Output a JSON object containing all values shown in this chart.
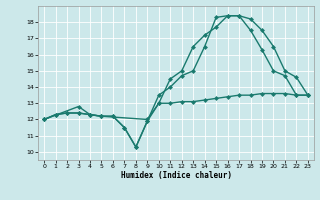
{
  "title": "",
  "xlabel": "Humidex (Indice chaleur)",
  "bg_color": "#cce8ea",
  "line_color": "#1a7a6e",
  "xlim": [
    -0.5,
    23.5
  ],
  "ylim": [
    9.5,
    19.0
  ],
  "yticks": [
    10,
    11,
    12,
    13,
    14,
    15,
    16,
    17,
    18
  ],
  "xticks": [
    0,
    1,
    2,
    3,
    4,
    5,
    6,
    7,
    8,
    9,
    10,
    11,
    12,
    13,
    14,
    15,
    16,
    17,
    18,
    19,
    20,
    21,
    22,
    23
  ],
  "line1_x": [
    0,
    1,
    2,
    3,
    4,
    5,
    6,
    7,
    8,
    9,
    10,
    11,
    12,
    13,
    14,
    15,
    16,
    17,
    18,
    19,
    20,
    21,
    22,
    23
  ],
  "line1_y": [
    12.0,
    12.3,
    12.4,
    12.4,
    12.3,
    12.2,
    12.2,
    11.5,
    10.3,
    11.9,
    13.0,
    13.0,
    13.1,
    13.1,
    13.2,
    13.3,
    13.4,
    13.5,
    13.5,
    13.6,
    13.6,
    13.6,
    13.5,
    13.5
  ],
  "line2_x": [
    0,
    1,
    2,
    3,
    4,
    5,
    6,
    7,
    8,
    9,
    10,
    11,
    12,
    13,
    14,
    15,
    16,
    17,
    18,
    19,
    20,
    21,
    22,
    23
  ],
  "line2_y": [
    12.0,
    12.3,
    12.4,
    12.4,
    12.3,
    12.2,
    12.2,
    11.5,
    10.3,
    11.9,
    13.5,
    14.0,
    14.7,
    15.0,
    16.5,
    18.3,
    18.4,
    18.4,
    18.2,
    17.5,
    16.5,
    15.0,
    14.6,
    13.5
  ],
  "line3_x": [
    0,
    3,
    4,
    5,
    9,
    10,
    11,
    12,
    13,
    14,
    15,
    16,
    17,
    18,
    19,
    20,
    21,
    22,
    23
  ],
  "line3_y": [
    12.0,
    12.8,
    12.3,
    12.2,
    12.0,
    13.0,
    14.5,
    15.0,
    16.5,
    17.2,
    17.7,
    18.4,
    18.4,
    17.5,
    16.3,
    15.0,
    14.7,
    13.5,
    13.5
  ]
}
